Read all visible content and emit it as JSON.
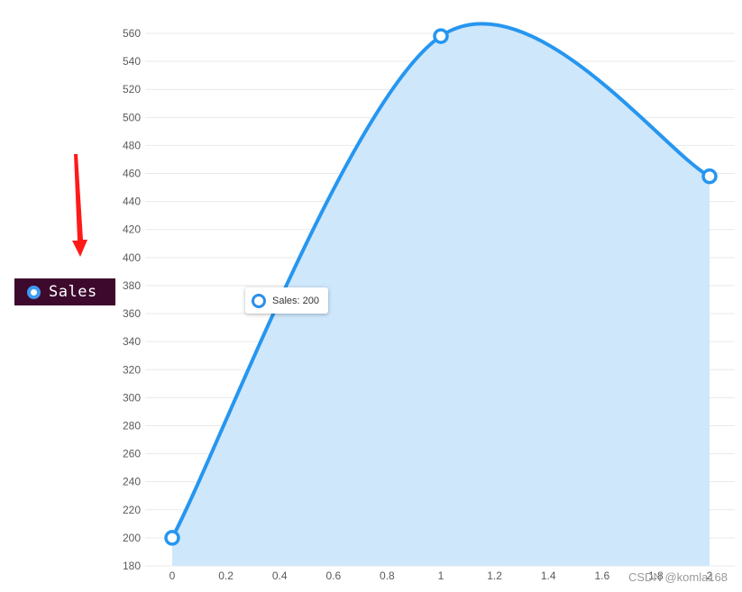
{
  "legend": {
    "label": "Sales",
    "marker_color": "#3d9bf2",
    "background": "#3d0a2d"
  },
  "tooltip": {
    "text": "Sales: 200"
  },
  "watermark": "CSDN @komla168",
  "annotation": {
    "type": "arrow",
    "color": "#ff1a1a",
    "points_to": "legend"
  },
  "chart_data": {
    "type": "area",
    "title": "",
    "xlabel": "",
    "ylabel": "",
    "xlim": [
      0,
      2
    ],
    "ylim": [
      180,
      560
    ],
    "x_ticks": [
      0,
      0.2,
      0.4,
      0.6,
      0.8,
      1,
      1.2,
      1.4,
      1.6,
      1.8,
      2
    ],
    "y_ticks": [
      180,
      200,
      220,
      240,
      260,
      280,
      300,
      320,
      340,
      360,
      380,
      400,
      420,
      440,
      460,
      480,
      500,
      520,
      540,
      560
    ],
    "series": [
      {
        "name": "Sales",
        "x": [
          0,
          1,
          2
        ],
        "values": [
          200,
          558,
          458
        ],
        "color": "#2696f0",
        "fill": "#cfe7fb"
      }
    ],
    "grid": true,
    "curve": "smooth"
  }
}
